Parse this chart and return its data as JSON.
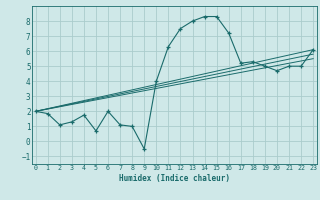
{
  "xlabel": "Humidex (Indice chaleur)",
  "background_color": "#cfe8e8",
  "grid_color": "#aacccc",
  "line_color": "#1a6b6b",
  "series_main": {
    "x": [
      0,
      1,
      2,
      3,
      4,
      5,
      6,
      7,
      8,
      9,
      10,
      11,
      12,
      13,
      14,
      15,
      16,
      17,
      18,
      19,
      20,
      21,
      22,
      23
    ],
    "y": [
      2.0,
      1.85,
      1.1,
      1.3,
      1.75,
      0.7,
      2.0,
      1.1,
      1.0,
      -0.5,
      4.0,
      6.3,
      7.5,
      8.0,
      8.3,
      8.3,
      7.2,
      5.2,
      5.3,
      5.0,
      4.7,
      5.0,
      5.0,
      6.1
    ]
  },
  "series_lines": [
    {
      "x": [
        0,
        23
      ],
      "y": [
        2.0,
        6.1
      ]
    },
    {
      "x": [
        0,
        23
      ],
      "y": [
        2.0,
        5.8
      ]
    },
    {
      "x": [
        0,
        23
      ],
      "y": [
        2.0,
        5.5
      ]
    }
  ],
  "xlim": [
    -0.3,
    23.3
  ],
  "ylim": [
    -1.5,
    9.0
  ],
  "yticks": [
    -1,
    0,
    1,
    2,
    3,
    4,
    5,
    6,
    7,
    8
  ],
  "xticks": [
    0,
    1,
    2,
    3,
    4,
    5,
    6,
    7,
    8,
    9,
    10,
    11,
    12,
    13,
    14,
    15,
    16,
    17,
    18,
    19,
    20,
    21,
    22,
    23
  ]
}
